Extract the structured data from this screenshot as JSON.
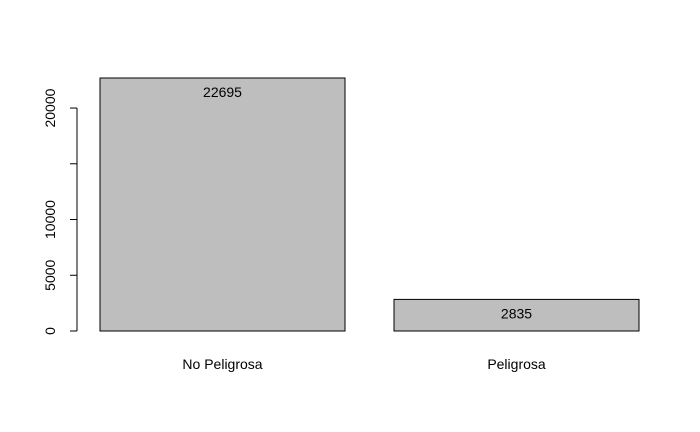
{
  "chart_data": {
    "type": "bar",
    "categories": [
      "No Peligrosa",
      "Peligrosa"
    ],
    "values": [
      22695,
      2835
    ],
    "data_labels": [
      "22695",
      "2835"
    ],
    "title": "",
    "xlabel": "",
    "ylabel": "",
    "ylim": [
      0,
      22695
    ],
    "y_ticks": [
      0,
      5000,
      10000,
      15000,
      20000
    ],
    "y_tick_labels": [
      "0",
      "5000",
      "10000",
      "",
      "20000"
    ],
    "grid": false,
    "bar_color": "#bebebe",
    "border_color": "#000000"
  }
}
